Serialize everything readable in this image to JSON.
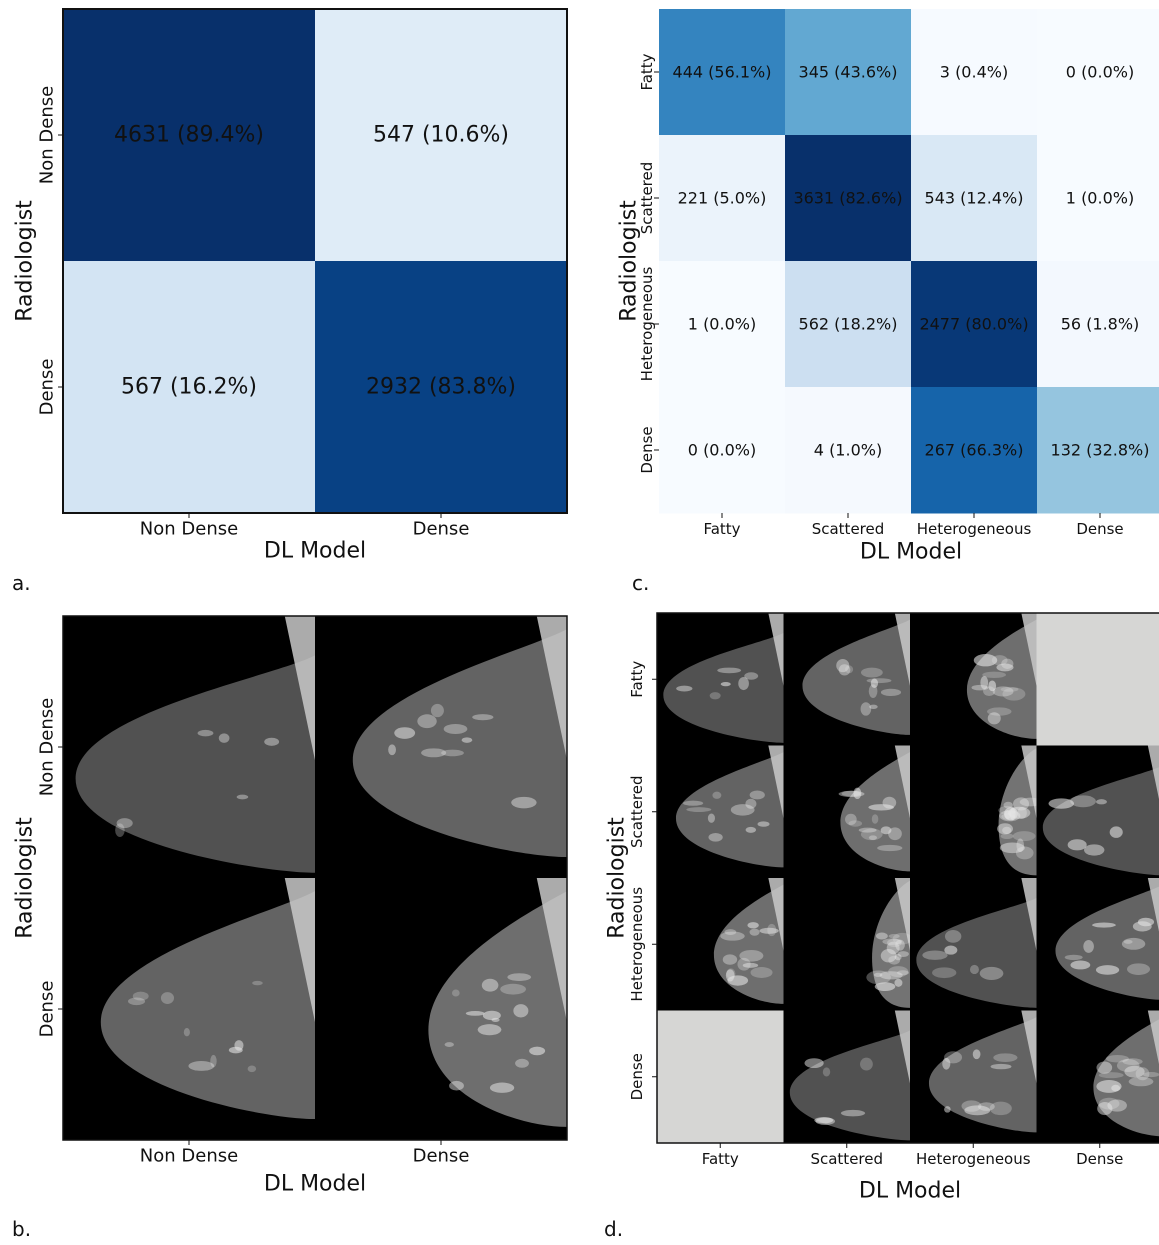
{
  "chart_data": [
    {
      "panel": "a.",
      "type": "heatmap",
      "xlabel": "DL Model",
      "ylabel": "Radiologist",
      "x_categories": [
        "Non Dense",
        "Dense"
      ],
      "y_categories": [
        "Non Dense",
        "Dense"
      ],
      "cells": [
        [
          {
            "count": 4631,
            "pct": 89.4,
            "label": "4631 (89.4%)"
          },
          {
            "count": 547,
            "pct": 10.6,
            "label": "547 (10.6%)"
          }
        ],
        [
          {
            "count": 567,
            "pct": 16.2,
            "label": "567 (16.2%)"
          },
          {
            "count": 2932,
            "pct": 83.8,
            "label": "2932 (83.8%)"
          }
        ]
      ],
      "colormap": "Blues"
    },
    {
      "panel": "c.",
      "type": "heatmap",
      "xlabel": "DL Model",
      "ylabel": "Radiologist",
      "x_categories": [
        "Fatty",
        "Scattered",
        "Heterogeneous",
        "Dense"
      ],
      "y_categories": [
        "Fatty",
        "Scattered",
        "Heterogeneous",
        "Dense"
      ],
      "cells": [
        [
          {
            "count": 444,
            "pct": 56.1,
            "label": "444 (56.1%)"
          },
          {
            "count": 345,
            "pct": 43.6,
            "label": "345 (43.6%)"
          },
          {
            "count": 3,
            "pct": 0.4,
            "label": "3 (0.4%)"
          },
          {
            "count": 0,
            "pct": 0.0,
            "label": "0 (0.0%)"
          }
        ],
        [
          {
            "count": 221,
            "pct": 5.0,
            "label": "221 (5.0%)"
          },
          {
            "count": 3631,
            "pct": 82.6,
            "label": "3631 (82.6%)"
          },
          {
            "count": 543,
            "pct": 12.4,
            "label": "543 (12.4%)"
          },
          {
            "count": 1,
            "pct": 0.0,
            "label": "1 (0.0%)"
          }
        ],
        [
          {
            "count": 1,
            "pct": 0.0,
            "label": "1 (0.0%)"
          },
          {
            "count": 562,
            "pct": 18.2,
            "label": "562 (18.2%)"
          },
          {
            "count": 2477,
            "pct": 80.0,
            "label": "2477 (80.0%)"
          },
          {
            "count": 56,
            "pct": 1.8,
            "label": "56 (1.8%)"
          }
        ],
        [
          {
            "count": 0,
            "pct": 0.0,
            "label": "0 (0.0%)"
          },
          {
            "count": 4,
            "pct": 1.0,
            "label": "4 (1.0%)"
          },
          {
            "count": 267,
            "pct": 66.3,
            "label": "267 (66.3%)"
          },
          {
            "count": 132,
            "pct": 32.8,
            "label": "132 (32.8%)"
          }
        ]
      ],
      "colormap": "Blues"
    },
    {
      "panel": "b.",
      "type": "image_grid",
      "xlabel": "DL Model",
      "ylabel": "Radiologist",
      "x_categories": [
        "Non Dense",
        "Dense"
      ],
      "y_categories": [
        "Non Dense",
        "Dense"
      ]
    },
    {
      "panel": "d.",
      "type": "image_grid",
      "xlabel": "DL Model",
      "ylabel": "Radiologist",
      "x_categories": [
        "Fatty",
        "Scattered",
        "Heterogeneous",
        "Dense"
      ],
      "y_categories": [
        "Fatty",
        "Scattered",
        "Heterogeneous",
        "Dense"
      ],
      "empty_cells": [
        [
          0,
          3
        ],
        [
          3,
          0
        ]
      ]
    }
  ]
}
